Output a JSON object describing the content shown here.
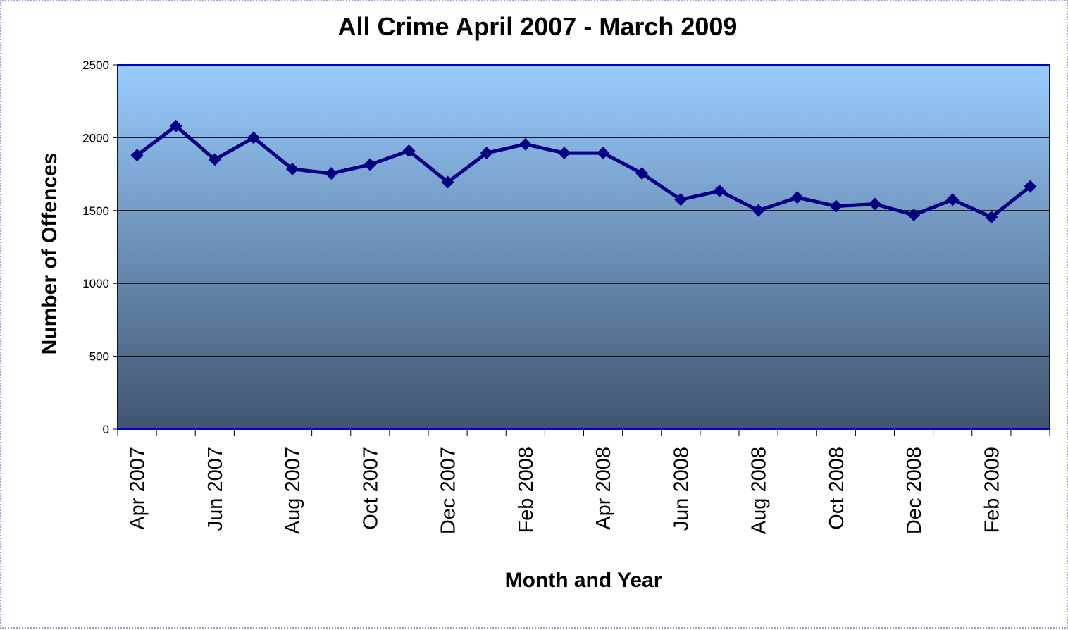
{
  "chart_data": {
    "type": "line",
    "title": "All Crime April 2007 - March 2009",
    "xlabel": "Month and Year",
    "ylabel": "Number of Offences",
    "ylim": [
      0,
      2500
    ],
    "yticks": [
      "0",
      "500",
      "1000",
      "1500",
      "2000",
      "2500"
    ],
    "grid": true,
    "legend": "none",
    "categories": [
      "Apr 2007",
      "May 2007",
      "Jun 2007",
      "Jul 2007",
      "Aug 2007",
      "Sep 2007",
      "Oct 2007",
      "Nov 2007",
      "Dec 2007",
      "Jan 2008",
      "Feb 2008",
      "Mar 2008",
      "Apr 2008",
      "May 2008",
      "Jun 2008",
      "Jul 2008",
      "Aug 2008",
      "Sep 2008",
      "Oct 2008",
      "Nov 2008",
      "Dec 2008",
      "Jan 2009",
      "Feb 2009",
      "Mar 2009"
    ],
    "tick_labels": [
      "Apr 2007",
      "",
      "Jun 2007",
      "",
      "Aug 2007",
      "",
      "Oct 2007",
      "",
      "Dec 2007",
      "",
      "Feb 2008",
      "",
      "Apr 2008",
      "",
      "Jun 2008",
      "",
      "Aug 2008",
      "",
      "Oct 2008",
      "",
      "Dec 2008",
      "",
      "Feb 2009",
      ""
    ],
    "series": [
      {
        "values": [
          1880,
          2080,
          1850,
          2000,
          1785,
          1755,
          1815,
          1910,
          1695,
          1895,
          1955,
          1895,
          1895,
          1755,
          1575,
          1635,
          1500,
          1590,
          1530,
          1545,
          1470,
          1575,
          1455,
          1665
        ]
      }
    ],
    "colors": {
      "line": "#000080",
      "plot_top": "#99ccff",
      "plot_bottom": "#405470",
      "plot_border": "#0000cc",
      "grid": "#000000"
    }
  }
}
